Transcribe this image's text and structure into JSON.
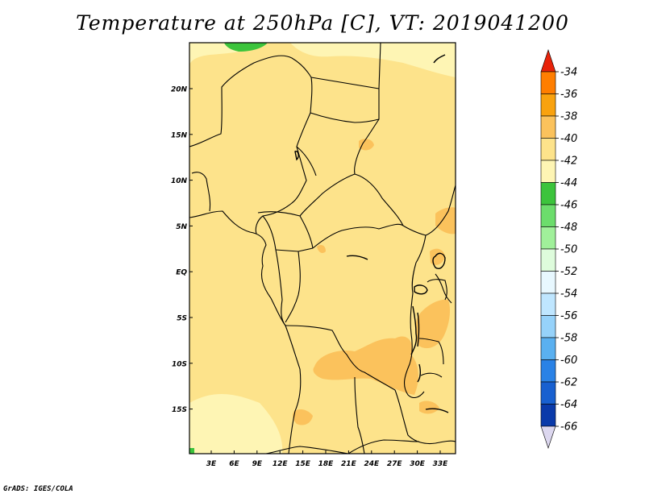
{
  "title": "Temperature at 250hPa [C], VT: 2019041200",
  "footer": "GrADS: IGES/COLA",
  "map": {
    "lat_labels": [
      "20N",
      "15N",
      "10N",
      "5N",
      "EQ",
      "5S",
      "10S",
      "15S"
    ],
    "lon_labels": [
      "3E",
      "6E",
      "9E",
      "12E",
      "15E",
      "18E",
      "21E",
      "24E",
      "27E",
      "30E",
      "33E"
    ],
    "base_color": "#fde38b",
    "warm_color": "#fbc25c",
    "cool_color": "#fef5b4",
    "green_color": "#3cc43c"
  },
  "colorbar": {
    "labels": [
      "-34",
      "-36",
      "-38",
      "-40",
      "-42",
      "-44",
      "-46",
      "-48",
      "-50",
      "-52",
      "-54",
      "-56",
      "-58",
      "-60",
      "-62",
      "-64",
      "-66"
    ],
    "colors": [
      "#f04206",
      "#ff7e00",
      "#f9a20f",
      "#fbc25c",
      "#fde38b",
      "#fef5b4",
      "#3cc43c",
      "#6cdd6c",
      "#a0f09a",
      "#defcdc",
      "#e8f8ff",
      "#bfe6ff",
      "#96d2fa",
      "#5ab0f0",
      "#2a82e6",
      "#1860d0",
      "#0a3aaa",
      "#0b0e7a"
    ],
    "top_arrow_color": "#e8230a",
    "bottom_arrow_color": "#dcd7ef"
  }
}
